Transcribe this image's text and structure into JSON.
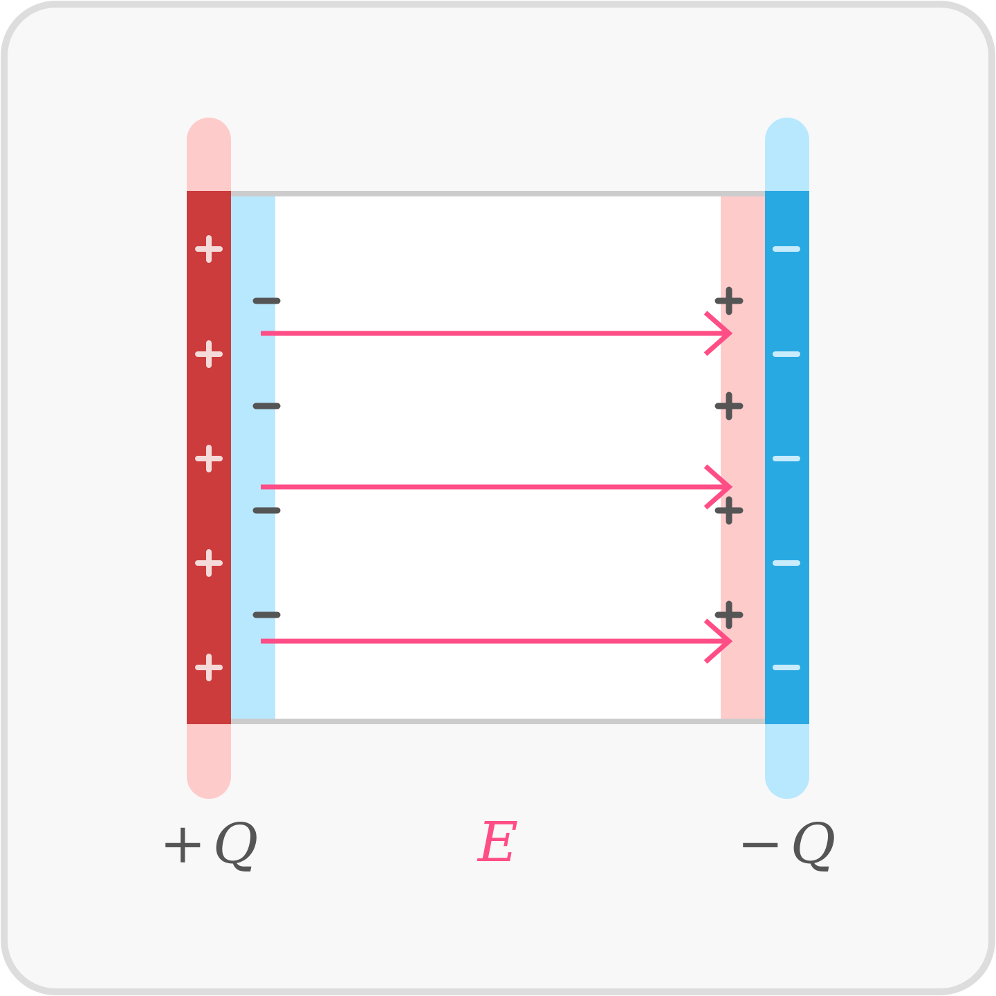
{
  "labels": {
    "left_sign": "+",
    "left_symbol": "Q",
    "right_sign": "−",
    "right_symbol": "Q",
    "field_symbol": "E"
  },
  "plates": {
    "left": {
      "charge_sign": "+",
      "charge_count": 5,
      "color": "#cc3c3c",
      "extension_color": "#fecbcb"
    },
    "right": {
      "charge_sign": "−",
      "charge_count": 5,
      "color": "#29a9e2",
      "extension_color": "#b8e8fe"
    }
  },
  "dielectric": {
    "induced_left_sign": "−",
    "induced_right_sign": "+",
    "induced_count": 4,
    "left_layer_color": "#b8e8fe",
    "right_layer_color": "#fecbcb",
    "fill_color": "#ffffff",
    "border_color": "#cccccc"
  },
  "field": {
    "arrow_count": 3,
    "color": "#ff4d85"
  },
  "colors": {
    "background": "#f8f8f8",
    "frame": "#dddddd",
    "text": "#555555",
    "plate_charge": "#f5dada",
    "plate_charge_right": "#c8ecfb",
    "induced_charge": "#555555"
  }
}
